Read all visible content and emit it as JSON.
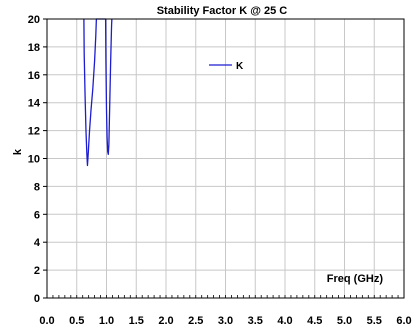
{
  "chart_data": {
    "type": "line",
    "title": "Stability Factor K @ 25 C",
    "xlabel": "Freq (GHz)",
    "ylabel": "k",
    "xlim": [
      0,
      6
    ],
    "ylim": [
      0,
      20
    ],
    "x_ticks": [
      "0.0",
      "0.5",
      "1.0",
      "1.5",
      "2.0",
      "2.5",
      "3.0",
      "3.5",
      "4.0",
      "4.5",
      "5.0",
      "5.5",
      "6.0"
    ],
    "y_ticks": [
      "0",
      "2",
      "4",
      "6",
      "8",
      "10",
      "12",
      "14",
      "16",
      "18",
      "20"
    ],
    "grid": true,
    "legend_position": "top-right",
    "series": [
      {
        "name": "K",
        "color": "#1c1cd0",
        "points": [
          [
            0.62,
            20
          ],
          [
            0.625,
            17.5
          ],
          [
            0.64,
            14.5
          ],
          [
            0.655,
            12.0
          ],
          [
            0.67,
            10.3
          ],
          [
            0.68,
            9.5
          ],
          [
            0.695,
            10.5
          ],
          [
            0.715,
            12.0
          ],
          [
            0.74,
            13.5
          ],
          [
            0.77,
            15.0
          ],
          [
            0.8,
            17.0
          ],
          [
            0.82,
            18.8
          ],
          [
            0.83,
            20
          ],
          [
            0.985,
            20
          ],
          [
            0.99,
            17.0
          ],
          [
            1.0,
            13.5
          ],
          [
            1.01,
            11.5
          ],
          [
            1.02,
            10.5
          ],
          [
            1.03,
            10.3
          ],
          [
            1.04,
            11.0
          ],
          [
            1.055,
            14.0
          ],
          [
            1.07,
            17.0
          ],
          [
            1.085,
            19.5
          ],
          [
            1.09,
            20
          ]
        ]
      }
    ]
  }
}
